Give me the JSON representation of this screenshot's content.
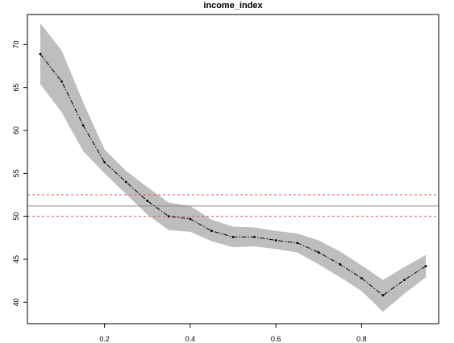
{
  "chart_data": {
    "type": "line",
    "title": "income_index",
    "xlabel": "",
    "ylabel": "",
    "xlim": [
      0.02,
      0.98
    ],
    "ylim": [
      37.5,
      73.5
    ],
    "xticks": [
      0.2,
      0.4,
      0.6,
      0.8
    ],
    "yticks": [
      40,
      45,
      50,
      55,
      60,
      65,
      70
    ],
    "grid": false,
    "legend": "none",
    "series": [
      {
        "x": [
          0.05,
          0.1,
          0.15,
          0.2,
          0.25,
          0.3,
          0.35,
          0.4,
          0.45,
          0.5,
          0.55,
          0.6,
          0.65,
          0.7,
          0.75,
          0.8,
          0.85,
          0.9,
          0.95
        ],
        "y": [
          68.9,
          65.7,
          60.6,
          56.3,
          54.0,
          51.8,
          50.0,
          49.7,
          48.3,
          47.6,
          47.6,
          47.2,
          46.9,
          45.8,
          44.4,
          42.8,
          40.8,
          42.6,
          44.2
        ],
        "lower": [
          65.4,
          62.1,
          57.6,
          55.0,
          52.6,
          50.2,
          48.4,
          48.2,
          47.1,
          46.4,
          46.5,
          46.2,
          45.8,
          44.4,
          42.9,
          41.3,
          38.9,
          41.0,
          42.9
        ],
        "upper": [
          72.5,
          69.3,
          63.3,
          57.8,
          55.3,
          53.4,
          51.6,
          51.2,
          49.6,
          48.8,
          48.7,
          48.3,
          48.0,
          47.2,
          45.9,
          44.3,
          42.6,
          44.1,
          45.5
        ]
      }
    ],
    "reference_lines": [
      {
        "y": 51.2,
        "style": "solid",
        "color": "#888888"
      },
      {
        "y": 52.5,
        "style": "dashed",
        "color": "#e05555"
      },
      {
        "y": 50.0,
        "style": "dashed",
        "color": "#e05555"
      }
    ],
    "band_color": "#bebebe"
  }
}
